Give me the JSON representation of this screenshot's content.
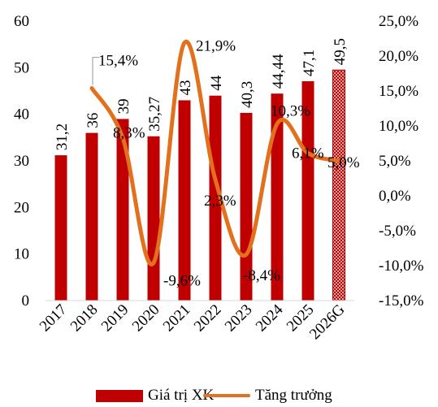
{
  "chart_data": {
    "type": "bar",
    "categories": [
      "2017",
      "2018",
      "2019",
      "2020",
      "2021",
      "2022",
      "2023",
      "2024",
      "2025",
      "2026G"
    ],
    "series": [
      {
        "name": "Giá trị XK",
        "type": "bar",
        "axis": "left",
        "values": [
          31.2,
          36,
          39,
          35.27,
          43,
          44,
          40.3,
          44.44,
          47.1,
          49.5
        ],
        "labels": [
          "31,2",
          "36",
          "39",
          "35,27",
          "43",
          "44",
          "40,3",
          "44,44",
          "47,1",
          "49,5"
        ],
        "color": "#c00000",
        "last_bar_pattern": "cross-hatch"
      },
      {
        "name": "Tăng trưởng",
        "type": "line",
        "axis": "right",
        "values": [
          null,
          15.4,
          8.3,
          -9.6,
          21.9,
          2.3,
          -8.4,
          10.3,
          6.1,
          5.0
        ],
        "labels": [
          "",
          "15,4%",
          "8,3%",
          "-9,6%",
          "21,9%",
          "2,3%",
          "-8,4%",
          "10,3%",
          "6,1%",
          "5,0%"
        ],
        "color": "#e2711d"
      }
    ],
    "y_left": {
      "min": 0,
      "max": 60,
      "ticks": [
        "0",
        "10",
        "20",
        "30",
        "40",
        "50",
        "60"
      ]
    },
    "y_right": {
      "min": -15,
      "max": 25,
      "ticks": [
        "-15,0%",
        "-10,0%",
        "-5,0%",
        "0,0%",
        "5,0%",
        "10,0%",
        "15,0%",
        "20,0%",
        "25,0%"
      ]
    },
    "legend_position": "bottom",
    "grid": false
  }
}
